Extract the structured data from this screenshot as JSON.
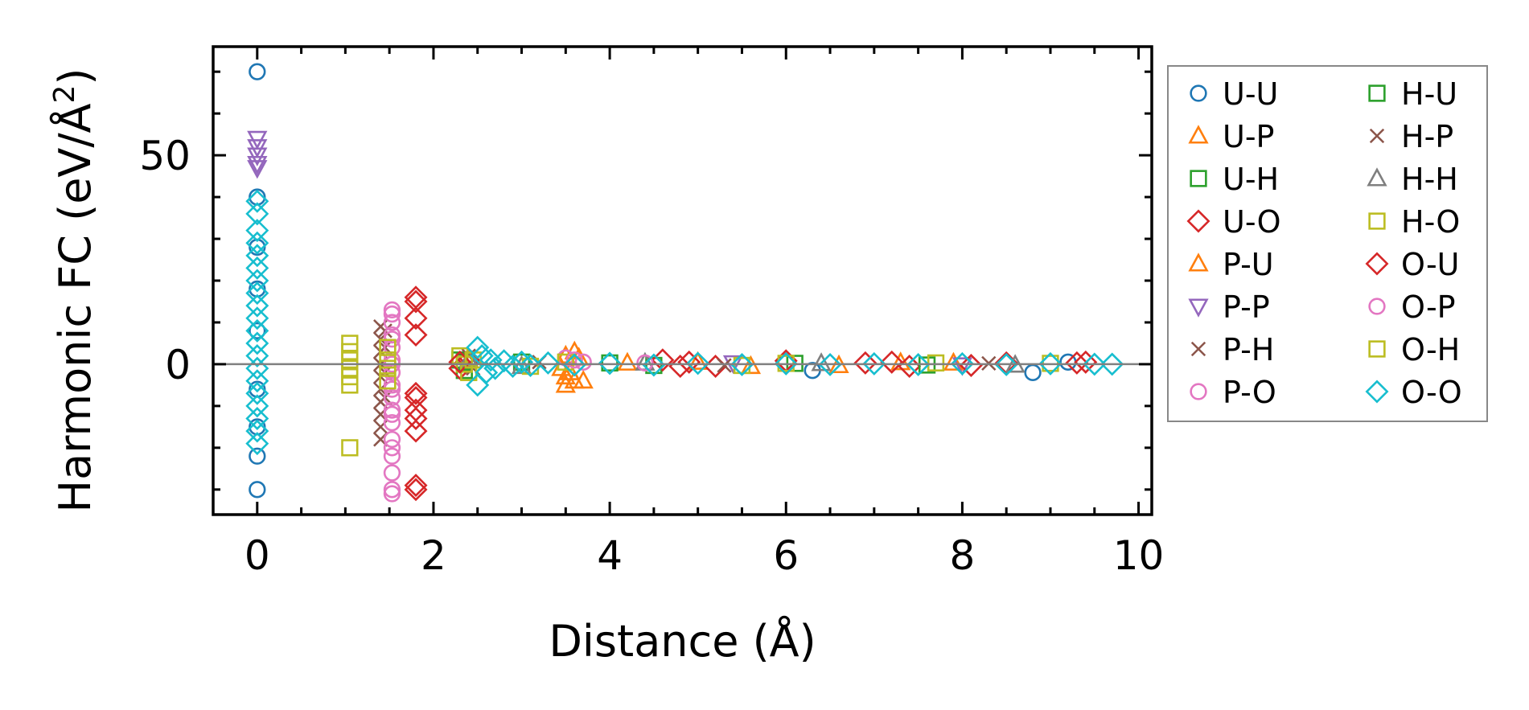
{
  "chart_data": {
    "type": "scatter",
    "xlabel": "Distance (Å)",
    "ylabel_main": "Harmonic FC (eV/Å",
    "ylabel_sup": "2",
    "ylabel_tail": ")",
    "xlim": [
      -0.5,
      10.15
    ],
    "ylim": [
      -36,
      76
    ],
    "xticks": [
      0,
      2,
      4,
      6,
      8,
      10
    ],
    "xtick_labels": [
      "0",
      "2",
      "4",
      "6",
      "8",
      "10"
    ],
    "yticks": [
      0,
      50
    ],
    "ytick_labels": [
      "0",
      "50"
    ],
    "zero_line": true,
    "grid": false,
    "legend_position": "outside-right",
    "series": [
      {
        "name": "U-U",
        "marker": "circle",
        "color": "#1f77b4",
        "points": [
          [
            0,
            70
          ],
          [
            0,
            40
          ],
          [
            0,
            -22
          ],
          [
            0,
            -30
          ],
          [
            0,
            28
          ],
          [
            0,
            18
          ],
          [
            0,
            8
          ],
          [
            0,
            -6
          ],
          [
            0,
            -15
          ],
          [
            8.8,
            -2
          ],
          [
            6.3,
            -1.5
          ],
          [
            9.2,
            0.5
          ]
        ]
      },
      {
        "name": "U-P",
        "marker": "triangle-up",
        "color": "#ff7f0e",
        "points": [
          [
            3.5,
            2
          ],
          [
            3.6,
            3
          ],
          [
            3.5,
            -5
          ],
          [
            3.6,
            -4
          ],
          [
            3.7,
            -4
          ],
          [
            3.55,
            -2
          ],
          [
            3.45,
            -1
          ],
          [
            5.0,
            0.5
          ],
          [
            5.6,
            -0.5
          ],
          [
            7.3,
            0.4
          ]
        ]
      },
      {
        "name": "U-H",
        "marker": "square",
        "color": "#2ca02c",
        "points": [
          [
            2.3,
            1
          ],
          [
            2.35,
            -1.5
          ],
          [
            3.0,
            0.5
          ],
          [
            4.5,
            -0.3
          ],
          [
            6.1,
            0.2
          ]
        ]
      },
      {
        "name": "U-O",
        "marker": "diamond",
        "color": "#d62728",
        "points": [
          [
            1.8,
            16
          ],
          [
            1.8,
            11
          ],
          [
            1.8,
            7
          ],
          [
            1.8,
            -7
          ],
          [
            1.8,
            -11
          ],
          [
            1.8,
            -13
          ],
          [
            1.8,
            -16
          ],
          [
            1.8,
            -29
          ],
          [
            1.8,
            -30
          ],
          [
            2.3,
            -1
          ],
          [
            2.4,
            1
          ],
          [
            4.6,
            1
          ],
          [
            4.9,
            0.5
          ],
          [
            5.2,
            -0.5
          ],
          [
            6.0,
            0.8
          ],
          [
            7.2,
            0.5
          ],
          [
            7.4,
            -0.5
          ],
          [
            8.5,
            0.3
          ],
          [
            9.4,
            0.5
          ]
        ]
      },
      {
        "name": "P-U",
        "marker": "triangle-up",
        "color": "#ff7f0e",
        "points": [
          [
            3.5,
            -3
          ],
          [
            3.65,
            1.5
          ],
          [
            4.2,
            0.3
          ],
          [
            6.6,
            -0.3
          ],
          [
            7.9,
            0.3
          ]
        ]
      },
      {
        "name": "P-P",
        "marker": "triangle-down",
        "color": "#9467bd",
        "points": [
          [
            0,
            54
          ],
          [
            0,
            52
          ],
          [
            0,
            50
          ],
          [
            0,
            48
          ],
          [
            0,
            47
          ],
          [
            5.4,
            0.3
          ],
          [
            8.0,
            -0.2
          ]
        ]
      },
      {
        "name": "P-H",
        "marker": "x",
        "color": "#8c564b",
        "points": [
          [
            1.4,
            9
          ],
          [
            1.4,
            6
          ],
          [
            1.4,
            3
          ],
          [
            1.4,
            0
          ],
          [
            1.4,
            -3
          ],
          [
            1.4,
            -6
          ],
          [
            1.4,
            -9
          ],
          [
            1.4,
            -12
          ],
          [
            1.4,
            -15
          ],
          [
            1.4,
            -18
          ],
          [
            1.45,
            8
          ],
          [
            1.45,
            4
          ],
          [
            1.45,
            -2
          ],
          [
            1.45,
            -8
          ]
        ]
      },
      {
        "name": "P-O",
        "marker": "circle",
        "color": "#e377c2",
        "points": [
          [
            1.53,
            13
          ],
          [
            1.53,
            10
          ],
          [
            1.53,
            7
          ],
          [
            1.53,
            4
          ],
          [
            1.53,
            1
          ],
          [
            1.53,
            -2
          ],
          [
            1.53,
            -5
          ],
          [
            1.53,
            -8
          ],
          [
            1.53,
            -11
          ],
          [
            1.53,
            -14
          ],
          [
            1.53,
            -18
          ],
          [
            1.53,
            -22
          ],
          [
            1.53,
            -26
          ],
          [
            1.53,
            -30
          ],
          [
            1.53,
            -31
          ],
          [
            3.5,
            1.5
          ],
          [
            3.7,
            0.5
          ]
        ]
      },
      {
        "name": "H-U",
        "marker": "square",
        "color": "#2ca02c",
        "points": [
          [
            2.35,
            0.5
          ],
          [
            4.0,
            0.3
          ],
          [
            7.6,
            -0.2
          ]
        ]
      },
      {
        "name": "H-P",
        "marker": "x",
        "color": "#8c564b",
        "points": [
          [
            2.4,
            2
          ],
          [
            2.45,
            -1
          ],
          [
            3.2,
            0.5
          ],
          [
            5.3,
            -0.3
          ],
          [
            8.3,
            0.2
          ]
        ]
      },
      {
        "name": "H-H",
        "marker": "triangle-up",
        "color": "#7f7f7f",
        "points": [
          [
            2.4,
            1
          ],
          [
            3.0,
            -0.5
          ],
          [
            4.4,
            0.3
          ],
          [
            6.4,
            0.2
          ],
          [
            8.6,
            -0.2
          ]
        ]
      },
      {
        "name": "H-O",
        "marker": "square",
        "color": "#bcbd22",
        "points": [
          [
            1.05,
            5
          ],
          [
            1.05,
            3
          ],
          [
            1.05,
            1
          ],
          [
            1.05,
            -1
          ],
          [
            1.05,
            -3
          ],
          [
            1.05,
            -5
          ],
          [
            1.05,
            -20
          ],
          [
            2.3,
            2
          ],
          [
            2.35,
            0
          ],
          [
            2.4,
            -2
          ],
          [
            3.5,
            0.5
          ],
          [
            5.5,
            -0.3
          ],
          [
            7.7,
            0.3
          ],
          [
            9.0,
            0.2
          ]
        ]
      },
      {
        "name": "O-U",
        "marker": "diamond",
        "color": "#d62728",
        "points": [
          [
            1.8,
            15
          ],
          [
            1.8,
            -8
          ],
          [
            2.3,
            0.5
          ],
          [
            4.8,
            -0.5
          ],
          [
            6.9,
            0.3
          ],
          [
            8.1,
            -0.3
          ],
          [
            9.3,
            0.3
          ]
        ]
      },
      {
        "name": "O-P",
        "marker": "circle",
        "color": "#e377c2",
        "points": [
          [
            1.53,
            12
          ],
          [
            1.53,
            6
          ],
          [
            1.53,
            0
          ],
          [
            1.53,
            -6
          ],
          [
            1.53,
            -12
          ],
          [
            1.53,
            -20
          ],
          [
            3.6,
            1
          ],
          [
            4.4,
            0.3
          ]
        ]
      },
      {
        "name": "O-H",
        "marker": "square",
        "color": "#bcbd22",
        "points": [
          [
            1.48,
            4
          ],
          [
            1.48,
            1
          ],
          [
            1.48,
            -1
          ],
          [
            1.48,
            -4
          ],
          [
            2.45,
            1
          ],
          [
            3.1,
            -0.5
          ],
          [
            6.0,
            0.2
          ]
        ]
      },
      {
        "name": "O-O",
        "marker": "diamond",
        "color": "#17becf",
        "points": [
          [
            0,
            39
          ],
          [
            0,
            36
          ],
          [
            0,
            32
          ],
          [
            0,
            29
          ],
          [
            0,
            26
          ],
          [
            0,
            23
          ],
          [
            0,
            20
          ],
          [
            0,
            17
          ],
          [
            0,
            14
          ],
          [
            0,
            11
          ],
          [
            0,
            8
          ],
          [
            0,
            5
          ],
          [
            0,
            2
          ],
          [
            0,
            -1
          ],
          [
            0,
            -4
          ],
          [
            0,
            -7
          ],
          [
            0,
            -10
          ],
          [
            0,
            -13
          ],
          [
            0,
            -16
          ],
          [
            0,
            -19
          ],
          [
            2.5,
            4
          ],
          [
            2.5,
            -5
          ],
          [
            2.55,
            2
          ],
          [
            2.6,
            -2
          ],
          [
            2.65,
            1
          ],
          [
            2.7,
            -1
          ],
          [
            2.8,
            0.8
          ],
          [
            2.9,
            -0.5
          ],
          [
            3.0,
            0.5
          ],
          [
            3.1,
            -0.3
          ],
          [
            3.3,
            0.3
          ],
          [
            3.6,
            -0.2
          ],
          [
            4.0,
            0.2
          ],
          [
            4.5,
            -0.2
          ],
          [
            5.0,
            0.2
          ],
          [
            5.5,
            -0.1
          ],
          [
            6.0,
            0.1
          ],
          [
            6.5,
            -0.1
          ],
          [
            7.0,
            0.1
          ],
          [
            7.5,
            -0.1
          ],
          [
            8.0,
            0.1
          ],
          [
            8.5,
            -0.1
          ],
          [
            9.0,
            0.1
          ],
          [
            9.5,
            0
          ],
          [
            9.7,
            0
          ]
        ]
      }
    ]
  }
}
